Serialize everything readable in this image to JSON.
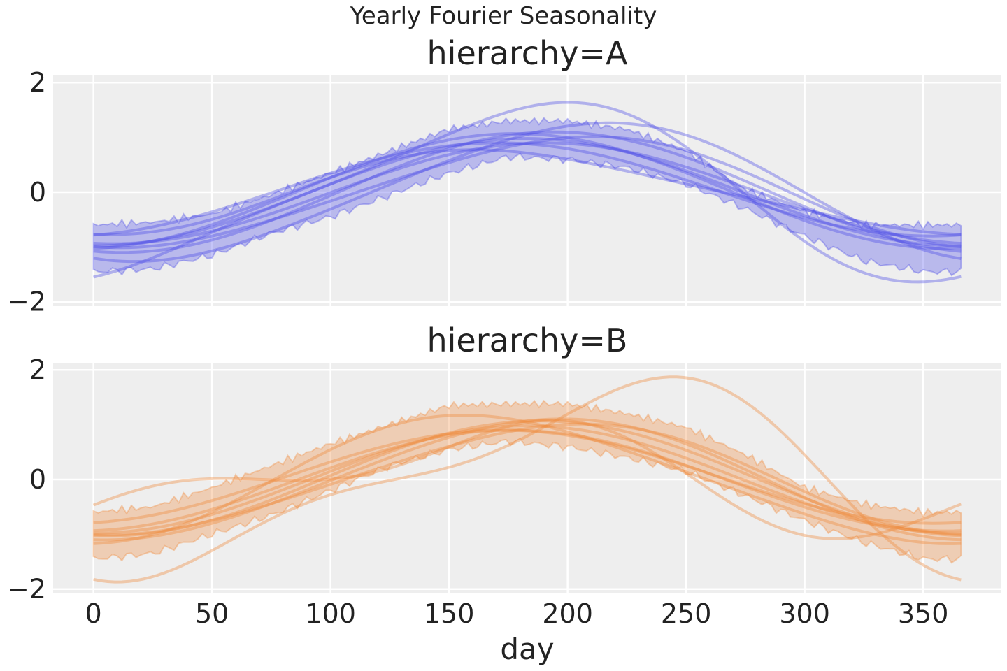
{
  "figure": {
    "title": "Yearly Fourier Seasonality",
    "xlabel": "day"
  },
  "colors": {
    "plot_bg": "#eeeeee",
    "grid": "#ffffff",
    "series_A": "#4c4ce8",
    "series_B": "#f0893a"
  },
  "chart_data": [
    {
      "type": "line",
      "title": "hierarchy=A",
      "xlabel": "",
      "ylabel": "",
      "xlim": [
        -17,
        383
      ],
      "ylim": [
        -2.08,
        2.13
      ],
      "xticks": [
        0,
        50,
        100,
        150,
        200,
        250,
        300,
        350
      ],
      "xtick_labels": [
        "0",
        "50",
        "100",
        "150",
        "200",
        "250",
        "300",
        "350"
      ],
      "yticks": [
        -2,
        0,
        2
      ],
      "ytick_labels": [
        "−2",
        "0",
        "2"
      ],
      "grid": true,
      "band": {
        "x": [
          0,
          25,
          50,
          75,
          100,
          125,
          150,
          175,
          200,
          225,
          250,
          275,
          300,
          325,
          350,
          366
        ],
        "upper": [
          -0.6,
          -0.55,
          -0.4,
          -0.05,
          0.35,
          0.75,
          1.15,
          1.3,
          1.3,
          1.15,
          0.75,
          0.05,
          -0.35,
          -0.6,
          -0.6,
          -0.6
        ],
        "lower": [
          -1.45,
          -1.4,
          -1.15,
          -0.75,
          -0.45,
          -0.05,
          0.35,
          0.65,
          0.6,
          0.45,
          0.15,
          -0.3,
          -0.8,
          -1.25,
          -1.45,
          -1.45
        ]
      },
      "series": [
        {
          "amplitude": 0.98,
          "phase_shift": 0,
          "offset": 0.0,
          "harmonic2": 0.0
        },
        {
          "amplitude": 1.05,
          "phase_shift": -5,
          "offset": 0.02,
          "harmonic2": 0.0
        },
        {
          "amplitude": 0.92,
          "phase_shift": 8,
          "offset": -0.02,
          "harmonic2": 0.0
        },
        {
          "amplitude": 1.1,
          "phase_shift": 12,
          "offset": 0.0,
          "harmonic2": 0.0
        },
        {
          "amplitude": 0.85,
          "phase_shift": -12,
          "offset": 0.05,
          "harmonic2": 0.0
        },
        {
          "amplitude": 1.0,
          "phase_shift": 20,
          "offset": 0.0,
          "harmonic2": 0.08
        },
        {
          "amplitude": 1.55,
          "phase_shift": 0,
          "offset": 0.0,
          "harmonic2": 0.28
        },
        {
          "amplitude": 1.25,
          "phase_shift": 26,
          "offset": 0.0,
          "harmonic2": 0.1
        },
        {
          "amplitude": 0.75,
          "phase_shift": -8,
          "offset": 0.0,
          "harmonic2": -0.1
        }
      ]
    },
    {
      "type": "line",
      "title": "hierarchy=B",
      "xlabel": "day",
      "ylabel": "",
      "xlim": [
        -17,
        383
      ],
      "ylim": [
        -2.08,
        2.13
      ],
      "xticks": [
        0,
        50,
        100,
        150,
        200,
        250,
        300,
        350
      ],
      "xtick_labels": [
        "0",
        "50",
        "100",
        "150",
        "200",
        "250",
        "300",
        "350"
      ],
      "yticks": [
        -2,
        0,
        2
      ],
      "ytick_labels": [
        "−2",
        "0",
        "2"
      ],
      "grid": true,
      "band": {
        "x": [
          0,
          25,
          50,
          75,
          100,
          125,
          150,
          175,
          200,
          225,
          250,
          275,
          300,
          325,
          350,
          366
        ],
        "upper": [
          -0.6,
          -0.5,
          -0.15,
          0.25,
          0.65,
          1.0,
          1.35,
          1.38,
          1.38,
          1.2,
          0.95,
          0.45,
          -0.15,
          -0.45,
          -0.6,
          -0.6
        ],
        "lower": [
          -1.45,
          -1.35,
          -1.0,
          -0.65,
          -0.2,
          0.25,
          0.55,
          0.7,
          0.6,
          0.4,
          0.15,
          -0.3,
          -0.75,
          -1.15,
          -1.45,
          -1.45
        ]
      },
      "series": [
        {
          "amplitude": 0.98,
          "phase_shift": 0,
          "offset": 0.0,
          "harmonic2": 0.0
        },
        {
          "amplitude": 1.05,
          "phase_shift": 6,
          "offset": 0.02,
          "harmonic2": 0.0
        },
        {
          "amplitude": 0.92,
          "phase_shift": -6,
          "offset": -0.02,
          "harmonic2": 0.0
        },
        {
          "amplitude": 1.1,
          "phase_shift": 10,
          "offset": 0.0,
          "harmonic2": 0.05
        },
        {
          "amplitude": 0.85,
          "phase_shift": -10,
          "offset": 0.05,
          "harmonic2": 0.0
        },
        {
          "amplitude": 1.0,
          "phase_shift": 15,
          "offset": 0.0,
          "harmonic2": 0.08
        },
        {
          "amplitude": 1.15,
          "phase_shift": -15,
          "offset": 0.0,
          "harmonic2": -0.12
        },
        {
          "amplitude": 1.6,
          "phase_shift": 36,
          "offset": 0.0,
          "harmonic2": 0.55
        },
        {
          "amplitude": 0.8,
          "phase_shift": -20,
          "offset": 0.0,
          "harmonic2": 0.45
        }
      ]
    }
  ]
}
